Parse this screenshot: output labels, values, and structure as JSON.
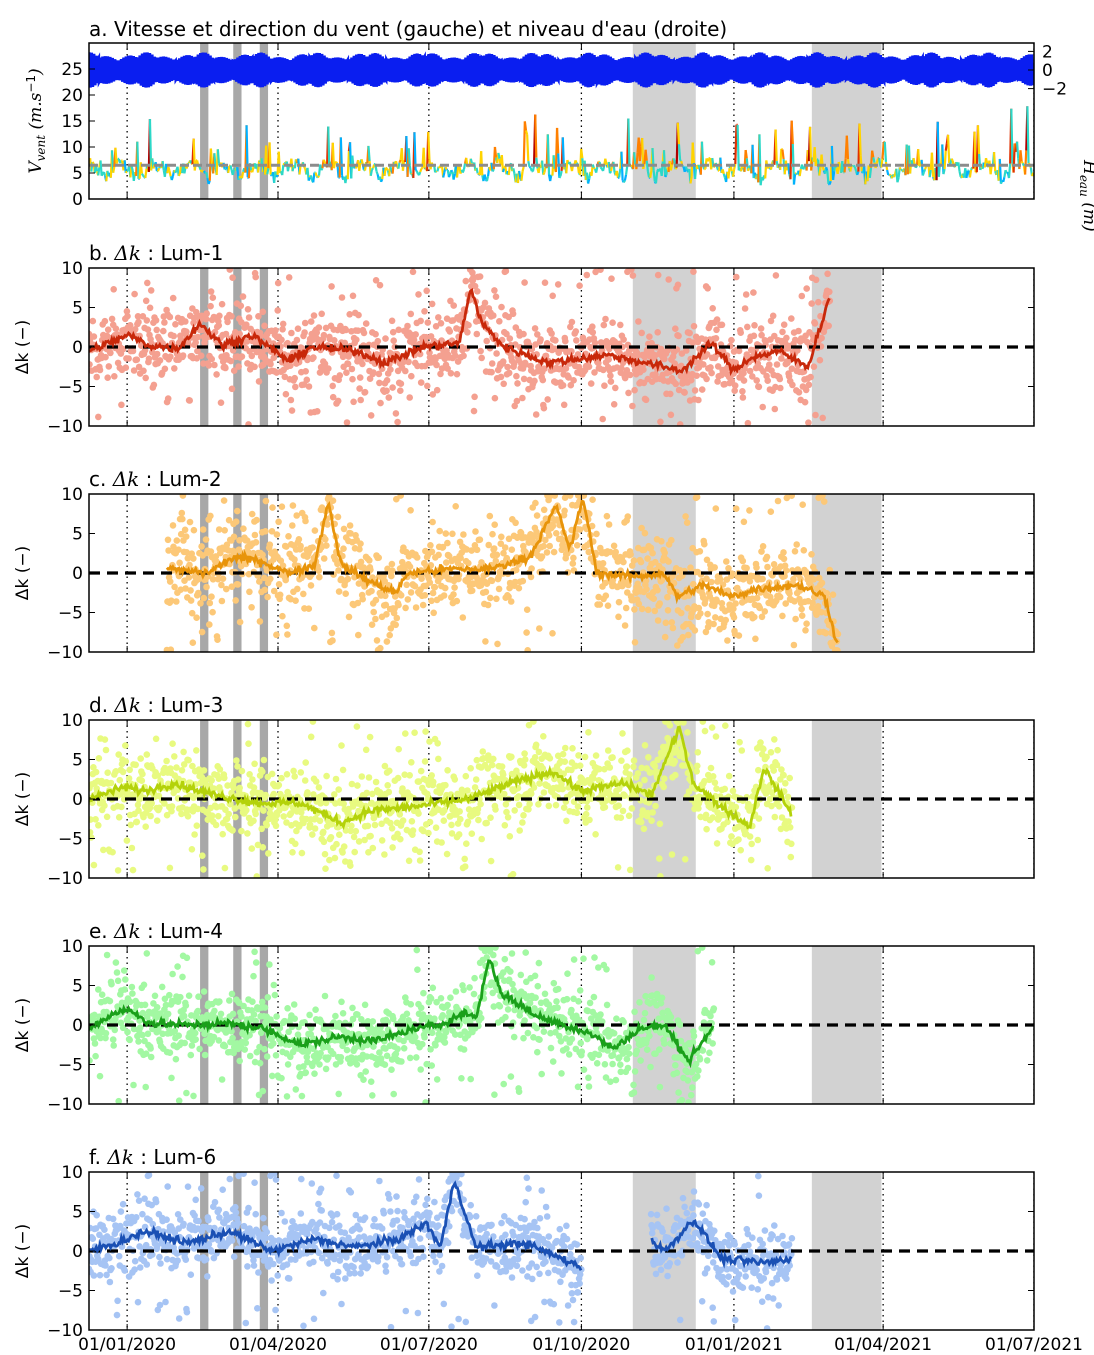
{
  "chart_data": [
    {
      "type": "line",
      "panel": "a",
      "title": "a. Vitesse et direction du vent (gauche) et niveau d'eau (droite)",
      "ylabel": "V_vent (m.s^-1)",
      "ylabel_parts": {
        "main": "V",
        "sub": "vent",
        "unit": "(m.s",
        "sup": "−1",
        "close": ")"
      },
      "ylabel_right": "H_eau (m)",
      "ylabel_right_parts": {
        "main": "H",
        "sub": "eau",
        "unit": "(m)"
      },
      "ylim": [
        0,
        30
      ],
      "yticks": [
        "0",
        "5",
        "10",
        "15",
        "20",
        "25"
      ],
      "yticks_right": [
        "2",
        "0",
        "−2"
      ],
      "threshold": 6.5,
      "series": [
        {
          "axis": "right",
          "color": "#0a1ef0",
          "values": [
            -2.2,
            2.2
          ]
        },
        {
          "axis": "left",
          "colors": [
            "#0033ff",
            "#00b0ff",
            "#2cd8c8",
            "#ffd400",
            "#ff8000",
            "#e03000",
            "#b00000"
          ],
          "values": [
            1,
            7,
            21
          ]
        }
      ]
    },
    {
      "type": "scatter",
      "panel": "b",
      "title_prefix": "b.",
      "title_symbol": "Δk",
      "title_suffix": ": Lum-1",
      "ylabel": "Δk (−)",
      "ylim": [
        -10,
        10
      ],
      "yticks": [
        "−10",
        "−5",
        "0",
        "5",
        "10"
      ],
      "point_color": "#f4a090",
      "line_color": "#c8280a",
      "x_range": [
        "2019-12-09",
        "2021-02-28"
      ],
      "spread": 3.4,
      "trend": [
        [
          0,
          -0.5
        ],
        [
          0.04,
          1.0
        ],
        [
          0.055,
          1.5
        ],
        [
          0.08,
          0.2
        ],
        [
          0.12,
          -0.2
        ],
        [
          0.15,
          3.0
        ],
        [
          0.18,
          0.2
        ],
        [
          0.22,
          1.5
        ],
        [
          0.27,
          -1.8
        ],
        [
          0.3,
          0.0
        ],
        [
          0.36,
          -0.5
        ],
        [
          0.4,
          -2.0
        ],
        [
          0.45,
          0.0
        ],
        [
          0.5,
          0.5
        ],
        [
          0.515,
          7.5
        ],
        [
          0.53,
          3.0
        ],
        [
          0.56,
          0.0
        ],
        [
          0.62,
          -2.0
        ],
        [
          0.66,
          -1.5
        ],
        [
          0.7,
          -1.0
        ],
        [
          0.75,
          -2.0
        ],
        [
          0.8,
          -3.0
        ],
        [
          0.84,
          0.5
        ],
        [
          0.87,
          -3.0
        ],
        [
          0.89,
          -1.5
        ],
        [
          0.93,
          -0.5
        ],
        [
          0.97,
          -2.5
        ],
        [
          1.0,
          6.5
        ]
      ]
    },
    {
      "type": "scatter",
      "panel": "c",
      "title_prefix": "c.",
      "title_symbol": "Δk",
      "title_suffix": ": Lum-2",
      "ylabel": "Δk (−)",
      "ylim": [
        -10,
        10
      ],
      "yticks": [
        "−10",
        "−5",
        "0",
        "5",
        "10"
      ],
      "point_color": "#fcc878",
      "line_color": "#e8940a",
      "x_range": [
        "2020-01-25",
        "2021-03-05"
      ],
      "spread": 3.8,
      "trend": [
        [
          0,
          0.5
        ],
        [
          0.06,
          0.0
        ],
        [
          0.1,
          2.0
        ],
        [
          0.14,
          1.5
        ],
        [
          0.18,
          0.0
        ],
        [
          0.22,
          1.0
        ],
        [
          0.24,
          9.0
        ],
        [
          0.26,
          1.0
        ],
        [
          0.3,
          -1.0
        ],
        [
          0.34,
          -2.5
        ],
        [
          0.36,
          0.0
        ],
        [
          0.42,
          0.5
        ],
        [
          0.48,
          0.5
        ],
        [
          0.54,
          2.0
        ],
        [
          0.58,
          8.5
        ],
        [
          0.6,
          3.0
        ],
        [
          0.62,
          9.5
        ],
        [
          0.64,
          0.0
        ],
        [
          0.7,
          -0.5
        ],
        [
          0.74,
          0.0
        ],
        [
          0.76,
          -3.0
        ],
        [
          0.8,
          -1.5
        ],
        [
          0.84,
          -3.0
        ],
        [
          0.88,
          -2.0
        ],
        [
          0.94,
          -1.5
        ],
        [
          0.98,
          -3.0
        ],
        [
          1.0,
          -9.5
        ]
      ]
    },
    {
      "type": "scatter",
      "panel": "d",
      "title_prefix": "d.",
      "title_symbol": "Δk",
      "title_suffix": ": Lum-3",
      "ylabel": "Δk (−)",
      "ylim": [
        -10,
        10
      ],
      "yticks": [
        "−10",
        "−5",
        "0",
        "5",
        "10"
      ],
      "point_color": "#e8fa80",
      "line_color": "#b4d20a",
      "x_range": [
        "2019-12-09",
        "2021-02-05"
      ],
      "spread": 3.6,
      "trend": [
        [
          0,
          0.0
        ],
        [
          0.05,
          1.5
        ],
        [
          0.08,
          1.0
        ],
        [
          0.12,
          2.0
        ],
        [
          0.18,
          0.5
        ],
        [
          0.24,
          -0.5
        ],
        [
          0.3,
          -0.5
        ],
        [
          0.36,
          -3.0
        ],
        [
          0.4,
          -1.5
        ],
        [
          0.46,
          -1.0
        ],
        [
          0.5,
          -0.5
        ],
        [
          0.54,
          0.0
        ],
        [
          0.6,
          2.0
        ],
        [
          0.66,
          3.5
        ],
        [
          0.7,
          1.0
        ],
        [
          0.76,
          2.0
        ],
        [
          0.8,
          0.5
        ],
        [
          0.84,
          9.0
        ],
        [
          0.86,
          2.0
        ],
        [
          0.9,
          -1.0
        ],
        [
          0.94,
          -3.5
        ],
        [
          0.96,
          4.0
        ],
        [
          1.0,
          -2.0
        ]
      ]
    },
    {
      "type": "scatter",
      "panel": "e",
      "title_prefix": "e.",
      "title_symbol": "Δk",
      "title_suffix": ": Lum-4",
      "ylabel": "Δk (−)",
      "ylim": [
        -10,
        10
      ],
      "yticks": [
        "−10",
        "−5",
        "0",
        "5",
        "10"
      ],
      "point_color": "#a2f8a2",
      "line_color": "#1aa01a",
      "x_range": [
        "2019-12-09",
        "2020-12-20"
      ],
      "spread": 3.2,
      "trend": [
        [
          0,
          -0.5
        ],
        [
          0.04,
          1.5
        ],
        [
          0.06,
          2.0
        ],
        [
          0.1,
          0.2
        ],
        [
          0.16,
          0.0
        ],
        [
          0.22,
          0.2
        ],
        [
          0.28,
          -0.5
        ],
        [
          0.34,
          -2.5
        ],
        [
          0.4,
          -1.5
        ],
        [
          0.46,
          -2.0
        ],
        [
          0.52,
          -0.5
        ],
        [
          0.56,
          0.0
        ],
        [
          0.6,
          1.5
        ],
        [
          0.62,
          1.0
        ],
        [
          0.64,
          8.5
        ],
        [
          0.66,
          4.0
        ],
        [
          0.72,
          1.0
        ],
        [
          0.8,
          -1.0
        ],
        [
          0.84,
          -3.0
        ],
        [
          0.88,
          -0.5
        ],
        [
          0.92,
          0.0
        ],
        [
          0.96,
          -4.5
        ],
        [
          1.0,
          0.0
        ]
      ]
    },
    {
      "type": "scatter",
      "panel": "f",
      "title_prefix": "f.",
      "title_symbol": "Δk",
      "title_suffix": ": Lum-6",
      "ylabel": "Δk (−)",
      "ylim": [
        -10,
        10
      ],
      "yticks": [
        "−10",
        "−5",
        "0",
        "5",
        "10"
      ],
      "xticks": [
        "01/01/2020",
        "01/04/2020",
        "01/07/2020",
        "01/10/2020",
        "01/01/2021",
        "01/04/2021",
        "01/07/2021"
      ],
      "point_color": "#a6c4f4",
      "line_color": "#1a50b4",
      "x_range": [
        "2019-12-09",
        "2021-02-05"
      ],
      "gap": [
        "2020-10-01",
        "2020-11-12"
      ],
      "spread": 3.0,
      "trend": [
        [
          0,
          0.0
        ],
        [
          0.04,
          1.0
        ],
        [
          0.08,
          2.5
        ],
        [
          0.14,
          1.0
        ],
        [
          0.2,
          2.5
        ],
        [
          0.26,
          0.0
        ],
        [
          0.32,
          1.5
        ],
        [
          0.38,
          0.5
        ],
        [
          0.44,
          1.5
        ],
        [
          0.48,
          3.5
        ],
        [
          0.5,
          0.5
        ],
        [
          0.52,
          9.0
        ],
        [
          0.55,
          0.5
        ],
        [
          0.62,
          1.0
        ],
        [
          0.66,
          -0.5
        ],
        [
          0.7,
          -2.0
        ],
        [
          0.72,
          6.5
        ],
        [
          0.82,
          0.0
        ],
        [
          0.86,
          4.0
        ],
        [
          0.9,
          -1.0
        ],
        [
          0.96,
          -1.5
        ],
        [
          1.0,
          -1.0
        ]
      ]
    }
  ],
  "x_axis": {
    "start": "2019-12-09",
    "end": "2021-07-01",
    "ticks": [
      "2020-01-01",
      "2020-04-01",
      "2020-07-01",
      "2020-10-01",
      "2021-01-01",
      "2021-04-01",
      "2021-07-01"
    ]
  },
  "shaded_periods": [
    [
      "2020-02-14",
      "2020-02-19"
    ],
    [
      "2020-03-05",
      "2020-03-10"
    ],
    [
      "2020-03-21",
      "2020-03-26"
    ],
    [
      "2020-11-01",
      "2020-12-09"
    ],
    [
      "2021-02-17",
      "2021-03-31"
    ]
  ],
  "colors": {
    "shade": "#d2d2d2",
    "shade_dark": "#a8a8a8",
    "zero_line": "#000000"
  }
}
